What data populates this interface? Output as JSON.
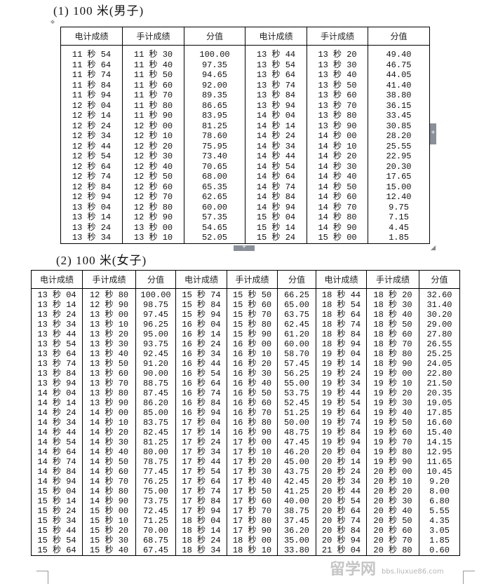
{
  "section1": {
    "title": "(1) 100 米(男子)",
    "headers": [
      "电计成绩",
      "手计成绩",
      "分值",
      "电计成绩",
      "手计成绩",
      "分值"
    ],
    "rows": [
      [
        "11 秒 54",
        "11 秒 30",
        "100.00",
        "13 秒 44",
        "13 秒 20",
        "49.40"
      ],
      [
        "11 秒 64",
        "11 秒 40",
        "97.35",
        "13 秒 54",
        "13 秒 30",
        "46.75"
      ],
      [
        "11 秒 74",
        "11 秒 50",
        "94.65",
        "13 秒 64",
        "13 秒 40",
        "44.05"
      ],
      [
        "11 秒 84",
        "11 秒 60",
        "92.00",
        "13 秒 74",
        "13 秒 50",
        "41.40"
      ],
      [
        "11 秒 94",
        "11 秒 70",
        "89.35",
        "13 秒 84",
        "13 秒 60",
        "38.80"
      ],
      [
        "12 秒 04",
        "11 秒 80",
        "86.65",
        "13 秒 94",
        "13 秒 70",
        "36.15"
      ],
      [
        "12 秒 14",
        "11 秒 90",
        "83.95",
        "14 秒 04",
        "13 秒 80",
        "33.45"
      ],
      [
        "12 秒 24",
        "12 秒 00",
        "81.25",
        "14 秒 14",
        "13 秒 90",
        "30.85"
      ],
      [
        "12 秒 34",
        "12 秒 10",
        "78.60",
        "14 秒 24",
        "14 秒 00",
        "28.20"
      ],
      [
        "12 秒 44",
        "12 秒 20",
        "75.95",
        "14 秒 34",
        "14 秒 10",
        "25.55"
      ],
      [
        "12 秒 54",
        "12 秒 30",
        "73.40",
        "14 秒 44",
        "14 秒 20",
        "22.95"
      ],
      [
        "12 秒 64",
        "12 秒 40",
        "70.65",
        "14 秒 54",
        "14 秒 30",
        "20.30"
      ],
      [
        "12 秒 74",
        "12 秒 50",
        "68.00",
        "14 秒 64",
        "14 秒 40",
        "17.65"
      ],
      [
        "12 秒 84",
        "12 秒 60",
        "65.35",
        "14 秒 74",
        "14 秒 50",
        "15.00"
      ],
      [
        "12 秒 94",
        "12 秒 70",
        "62.65",
        "14 秒 84",
        "14 秒 60",
        "12.40"
      ],
      [
        "13 秒 04",
        "12 秒 80",
        "60.00",
        "14 秒 94",
        "14 秒 70",
        "9.75"
      ],
      [
        "13 秒 14",
        "12 秒 90",
        "57.35",
        "15 秒 04",
        "14 秒 80",
        "7.15"
      ],
      [
        "13 秒 24",
        "13 秒 00",
        "54.65",
        "15 秒 14",
        "14 秒 90",
        "4.45"
      ],
      [
        "13 秒 34",
        "13 秒 10",
        "52.05",
        "15 秒 24",
        "15 秒 00",
        "1.85"
      ]
    ]
  },
  "section2": {
    "title": "(2) 100 米(女子)",
    "headers": [
      "电计成绩",
      "手计成绩",
      "分值",
      "电计成绩",
      "手计成绩",
      "分值",
      "电计成绩",
      "手计成绩",
      "分值"
    ],
    "rows": [
      [
        "13 秒 04",
        "12 秒 80",
        "100.00",
        "15 秒 74",
        "15 秒 50",
        "66.25",
        "18 秒 44",
        "18 秒 20",
        "32.60"
      ],
      [
        "13 秒 14",
        "12 秒 90",
        "98.75",
        "15 秒 84",
        "15 秒 60",
        "65.00",
        "18 秒 54",
        "18 秒 30",
        "31.40"
      ],
      [
        "13 秒 24",
        "13 秒 00",
        "97.45",
        "15 秒 94",
        "15 秒 70",
        "63.75",
        "18 秒 64",
        "18 秒 40",
        "30.20"
      ],
      [
        "13 秒 34",
        "13 秒 10",
        "96.25",
        "16 秒 04",
        "15 秒 80",
        "62.45",
        "18 秒 74",
        "18 秒 50",
        "29.00"
      ],
      [
        "13 秒 44",
        "13 秒 20",
        "95.00",
        "16 秒 14",
        "15 秒 90",
        "61.20",
        "18 秒 84",
        "18 秒 60",
        "27.80"
      ],
      [
        "13 秒 54",
        "13 秒 30",
        "93.75",
        "16 秒 24",
        "16 秒 00",
        "60.00",
        "18 秒 94",
        "18 秒 70",
        "26.55"
      ],
      [
        "13 秒 64",
        "13 秒 40",
        "92.45",
        "16 秒 34",
        "16 秒 10",
        "58.70",
        "19 秒 04",
        "18 秒 80",
        "25.25"
      ],
      [
        "13 秒 74",
        "13 秒 50",
        "91.20",
        "16 秒 44",
        "16 秒 20",
        "57.45",
        "19 秒 14",
        "18 秒 90",
        "24.05"
      ],
      [
        "13 秒 84",
        "13 秒 60",
        "90.00",
        "16 秒 54",
        "16 秒 30",
        "56.25",
        "19 秒 24",
        "19 秒 00",
        "22.80"
      ],
      [
        "13 秒 94",
        "13 秒 70",
        "88.75",
        "16 秒 64",
        "16 秒 40",
        "55.00",
        "19 秒 34",
        "19 秒 10",
        "21.50"
      ],
      [
        "14 秒 04",
        "13 秒 80",
        "87.45",
        "16 秒 74",
        "16 秒 50",
        "53.75",
        "19 秒 44",
        "19 秒 20",
        "20.35"
      ],
      [
        "14 秒 14",
        "13 秒 90",
        "86.20",
        "16 秒 84",
        "16 秒 60",
        "52.45",
        "19 秒 54",
        "19 秒 30",
        "19.05"
      ],
      [
        "14 秒 24",
        "14 秒 00",
        "85.00",
        "16 秒 94",
        "16 秒 70",
        "51.25",
        "19 秒 64",
        "19 秒 40",
        "17.85"
      ],
      [
        "14 秒 34",
        "14 秒 10",
        "83.75",
        "17 秒 04",
        "16 秒 80",
        "50.00",
        "19 秒 74",
        "19 秒 50",
        "16.60"
      ],
      [
        "14 秒 44",
        "14 秒 20",
        "82.45",
        "17 秒 14",
        "16 秒 90",
        "48.75",
        "19 秒 84",
        "19 秒 60",
        "15.40"
      ],
      [
        "14 秒 54",
        "14 秒 30",
        "81.25",
        "17 秒 24",
        "17 秒 00",
        "47.45",
        "19 秒 94",
        "19 秒 70",
        "14.15"
      ],
      [
        "14 秒 64",
        "14 秒 40",
        "80.00",
        "17 秒 34",
        "17 秒 10",
        "46.20",
        "20 秒 04",
        "19 秒 80",
        "12.95"
      ],
      [
        "14 秒 74",
        "14 秒 50",
        "78.75",
        "17 秒 44",
        "17 秒 20",
        "45.00",
        "20 秒 14",
        "19 秒 90",
        "11.65"
      ],
      [
        "14 秒 84",
        "14 秒 60",
        "77.45",
        "17 秒 54",
        "17 秒 30",
        "43.75",
        "20 秒 24",
        "20 秒 00",
        "10.45"
      ],
      [
        "14 秒 94",
        "14 秒 70",
        "76.25",
        "17 秒 64",
        "17 秒 40",
        "42.45",
        "20 秒 34",
        "20 秒 10",
        "9.20"
      ],
      [
        "15 秒 04",
        "14 秒 80",
        "75.00",
        "17 秒 74",
        "17 秒 50",
        "41.25",
        "20 秒 44",
        "20 秒 20",
        "8.00"
      ],
      [
        "15 秒 14",
        "14 秒 90",
        "73.75",
        "17 秒 84",
        "17 秒 60",
        "40.00",
        "20 秒 54",
        "20 秒 30",
        "6.80"
      ],
      [
        "15 秒 24",
        "15 秒 00",
        "72.45",
        "17 秒 94",
        "17 秒 70",
        "38.75",
        "20 秒 64",
        "20 秒 40",
        "5.55"
      ],
      [
        "15 秒 34",
        "15 秒 10",
        "71.25",
        "18 秒 04",
        "17 秒 80",
        "37.45",
        "20 秒 74",
        "20 秒 50",
        "4.35"
      ],
      [
        "15 秒 44",
        "15 秒 20",
        "70.00",
        "18 秒 14",
        "17 秒 90",
        "36.20",
        "20 秒 84",
        "20 秒 60",
        "3.05"
      ],
      [
        "15 秒 54",
        "15 秒 30",
        "68.75",
        "18 秒 24",
        "18 秒 00",
        "35.00",
        "20 秒 94",
        "20 秒 70",
        "1.85"
      ],
      [
        "15 秒 64",
        "15 秒 40",
        "67.45",
        "18 秒 34",
        "18 秒 10",
        "33.80",
        "21 秒 04",
        "20 秒 80",
        "0.60"
      ]
    ]
  },
  "watermark": {
    "logo": "留学网",
    "url": "bbs.liuxue86.com"
  },
  "icons": {
    "table_move": "move-handle-icon",
    "add_row": "plus-icon",
    "add_col": "plus-icon",
    "resize": "resize-handle-icon"
  }
}
